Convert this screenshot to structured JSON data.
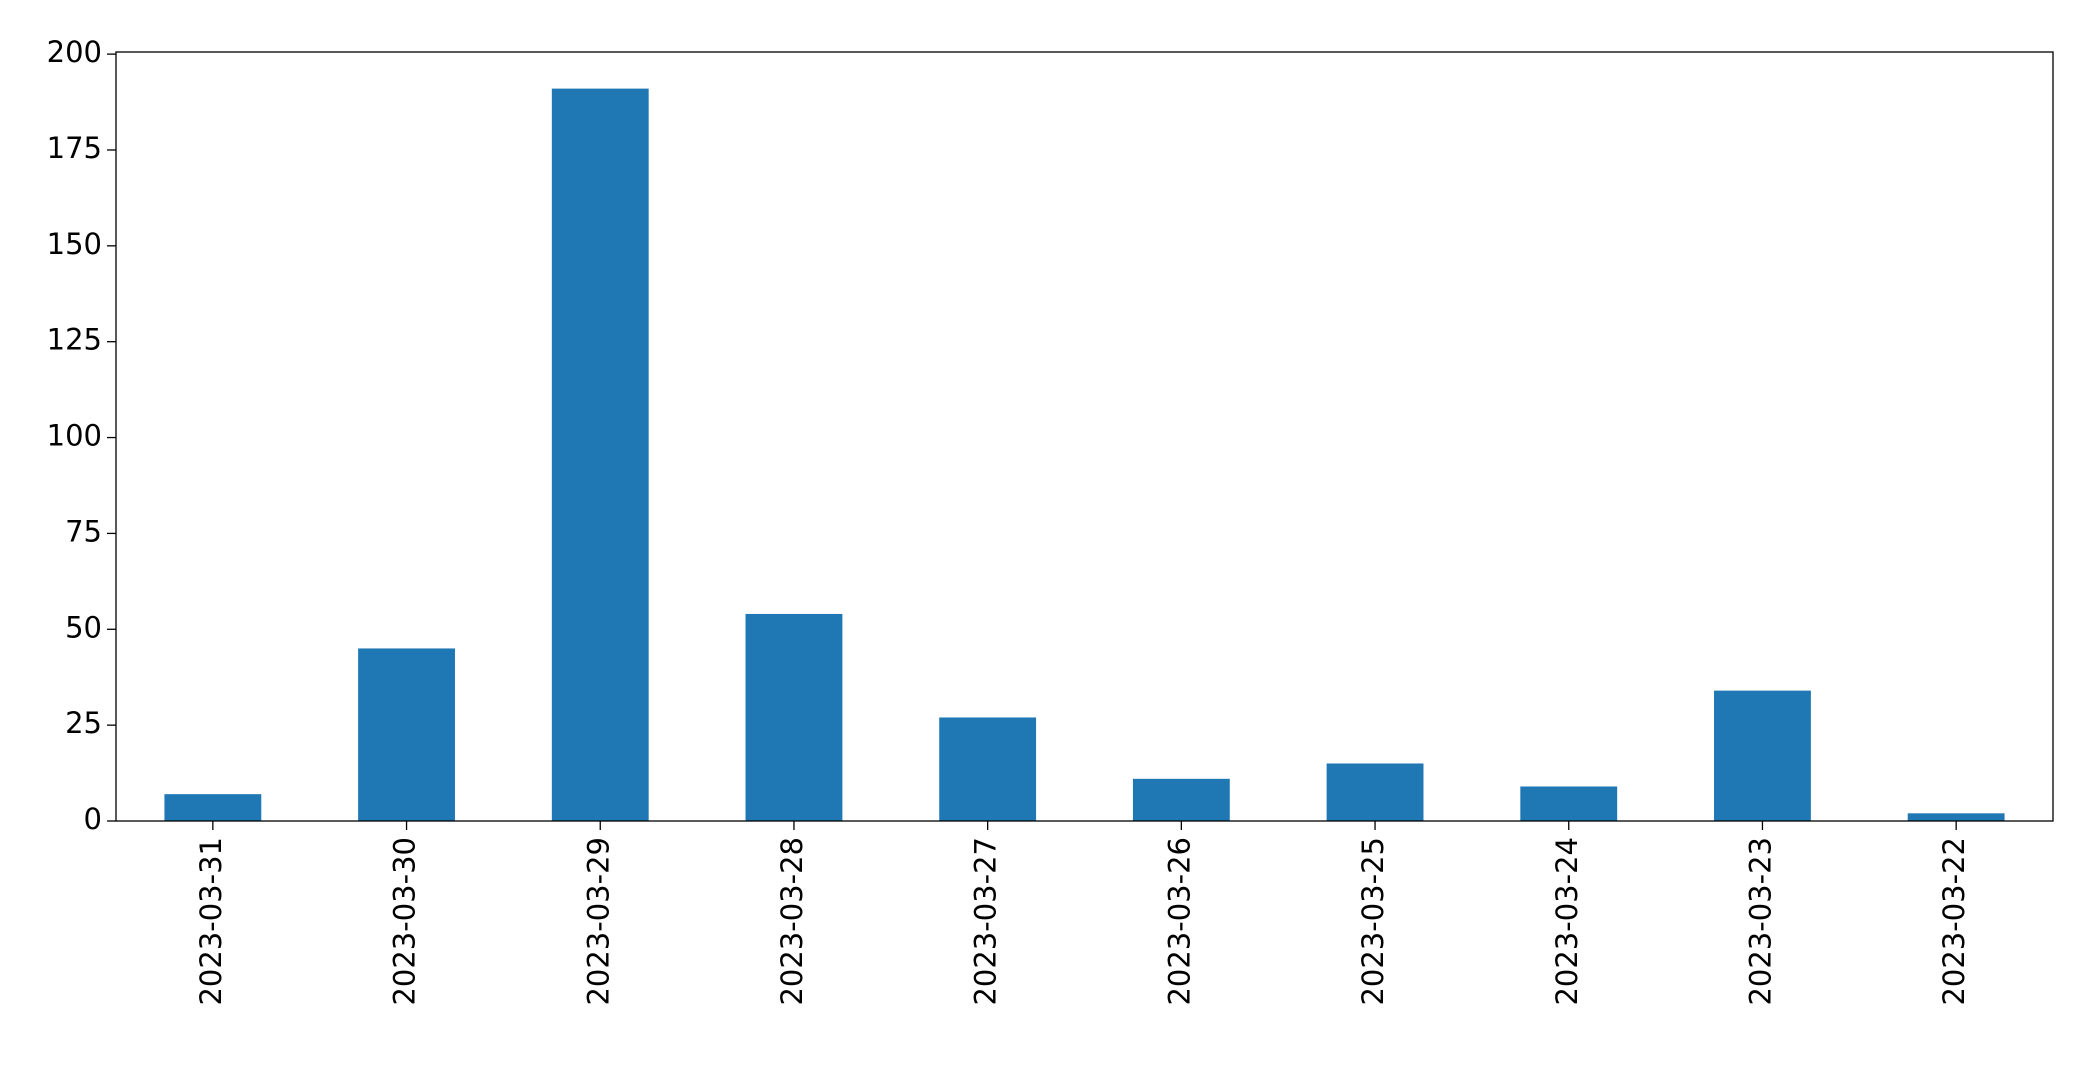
{
  "chart_data": {
    "type": "bar",
    "categories": [
      "2023-03-31",
      "2023-03-30",
      "2023-03-29",
      "2023-03-28",
      "2023-03-27",
      "2023-03-26",
      "2023-03-25",
      "2023-03-24",
      "2023-03-23",
      "2023-03-22"
    ],
    "values": [
      7,
      45,
      191,
      54,
      27,
      11,
      15,
      9,
      34,
      2
    ],
    "color": "#1f77b4",
    "ylim": [
      0,
      200.55
    ],
    "yticks": [
      0,
      25,
      50,
      75,
      100,
      125,
      150,
      175,
      200
    ],
    "grid": false
  }
}
